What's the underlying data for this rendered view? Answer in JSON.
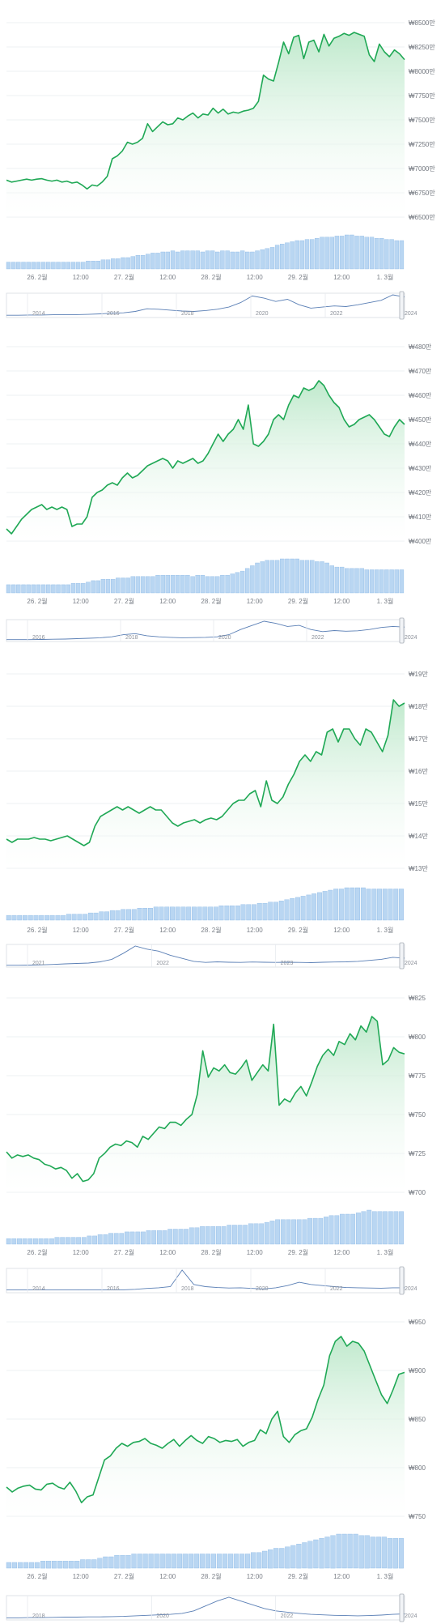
{
  "colors": {
    "line": "#1fa855",
    "area_top": "#bfe9cc",
    "volume": "#b9d6f2",
    "volume_stroke": "#8fbbe6",
    "navigator_line": "#5a7fb5",
    "grid": "#eef0f3",
    "axis_text": "#6f747c"
  },
  "chart_data": [
    {
      "type": "area",
      "x_tick_labels": [
        "26. 2월",
        "12:00",
        "27. 2월",
        "12:00",
        "28. 2월",
        "12:00",
        "29. 2월",
        "12:00",
        "1. 3월"
      ],
      "y_tick_labels": [
        "₩6500만",
        "₩6750만",
        "₩7000만",
        "₩7250만",
        "₩7500만",
        "₩7750만",
        "₩8000만",
        "₩8250만",
        "₩8500만"
      ],
      "ylim": [
        6500,
        8500
      ],
      "values": [
        6880,
        6860,
        6870,
        6880,
        6890,
        6880,
        6890,
        6895,
        6880,
        6870,
        6880,
        6860,
        6870,
        6850,
        6860,
        6830,
        6790,
        6830,
        6820,
        6860,
        6920,
        7100,
        7130,
        7180,
        7270,
        7250,
        7270,
        7310,
        7460,
        7380,
        7430,
        7480,
        7450,
        7460,
        7520,
        7500,
        7540,
        7570,
        7520,
        7560,
        7550,
        7620,
        7570,
        7610,
        7560,
        7580,
        7570,
        7590,
        7600,
        7620,
        7690,
        7960,
        7920,
        7900,
        8090,
        8300,
        8180,
        8350,
        8370,
        8130,
        8300,
        8320,
        8200,
        8380,
        8260,
        8340,
        8360,
        8390,
        8370,
        8400,
        8380,
        8360,
        8170,
        8100,
        8280,
        8200,
        8150,
        8220,
        8180,
        8120
      ],
      "volume": [
        6,
        6,
        6,
        6,
        6,
        6,
        6,
        6,
        6,
        6,
        6,
        6,
        6,
        6,
        6,
        6,
        7,
        7,
        7,
        8,
        8,
        9,
        9,
        10,
        10,
        11,
        12,
        12,
        13,
        14,
        14,
        15,
        15,
        16,
        15,
        16,
        16,
        16,
        16,
        15,
        16,
        16,
        15,
        16,
        16,
        15,
        15,
        16,
        15,
        15,
        16,
        17,
        18,
        19,
        21,
        22,
        23,
        24,
        25,
        25,
        26,
        26,
        27,
        28,
        28,
        28,
        29,
        29,
        30,
        30,
        29,
        29,
        28,
        28,
        27,
        27,
        26,
        26,
        25,
        25
      ],
      "navigator": {
        "year_labels": [
          "2014",
          "2016",
          "2018",
          "2020",
          "2022",
          "2024"
        ],
        "values": [
          0.3,
          0.3,
          0.4,
          0.4,
          0.5,
          0.6,
          0.6,
          0.7,
          0.9,
          1.2,
          1.4,
          2.0,
          3.2,
          3.0,
          2.6,
          2.2,
          2.0,
          2.4,
          3.0,
          4.0,
          6.0,
          9.0,
          8.0,
          6.5,
          7.5,
          5.0,
          3.5,
          4.0,
          4.5,
          4.2,
          5.0,
          6.0,
          7.0,
          9.5,
          8.5
        ]
      }
    },
    {
      "type": "area",
      "x_tick_labels": [
        "26. 2월",
        "12:00",
        "27. 2월",
        "12:00",
        "28. 2월",
        "12:00",
        "29. 2월",
        "12:00",
        "1. 3월"
      ],
      "y_tick_labels": [
        "₩400만",
        "₩410만",
        "₩420만",
        "₩430만",
        "₩440만",
        "₩450만",
        "₩460만",
        "₩470만",
        "₩480만"
      ],
      "ylim": [
        400,
        480
      ],
      "values": [
        405,
        403,
        406,
        409,
        411,
        413,
        414,
        415,
        413,
        414,
        413,
        414,
        413,
        406,
        407,
        407,
        410,
        418,
        420,
        421,
        423,
        424,
        423,
        426,
        428,
        426,
        427,
        429,
        431,
        432,
        433,
        434,
        433,
        430,
        433,
        432,
        433,
        434,
        432,
        433,
        436,
        440,
        444,
        441,
        444,
        446,
        450,
        446,
        456,
        440,
        439,
        441,
        444,
        450,
        452,
        450,
        456,
        460,
        459,
        463,
        462,
        463,
        466,
        464,
        460,
        457,
        455,
        450,
        447,
        448,
        450,
        451,
        452,
        450,
        447,
        444,
        443,
        447,
        450,
        448
      ],
      "volume": [
        6,
        6,
        6,
        6,
        6,
        6,
        6,
        6,
        6,
        6,
        6,
        6,
        6,
        7,
        7,
        7,
        8,
        9,
        9,
        10,
        10,
        10,
        11,
        11,
        11,
        12,
        12,
        12,
        12,
        12,
        13,
        13,
        13,
        13,
        13,
        13,
        13,
        12,
        13,
        13,
        12,
        12,
        12,
        13,
        13,
        14,
        15,
        16,
        18,
        20,
        22,
        23,
        24,
        24,
        24,
        25,
        25,
        25,
        25,
        24,
        24,
        24,
        23,
        23,
        22,
        20,
        19,
        19,
        18,
        18,
        18,
        18,
        17,
        17,
        17,
        17,
        17,
        17,
        17,
        17
      ],
      "navigator": {
        "year_labels": [
          "2016",
          "2018",
          "2020",
          "2022",
          "2024"
        ],
        "values": [
          0.1,
          0.1,
          0.1,
          0.2,
          0.3,
          0.4,
          0.6,
          0.8,
          1.0,
          1.5,
          2.5,
          3.0,
          2.0,
          1.5,
          1.2,
          1.0,
          1.1,
          1.2,
          1.5,
          2.5,
          5.0,
          7.0,
          9.0,
          8.0,
          6.5,
          7.0,
          5.0,
          4.0,
          4.5,
          4.2,
          4.4,
          5.0,
          6.0,
          6.5,
          6.2
        ]
      }
    },
    {
      "type": "area",
      "x_tick_labels": [
        "26. 2월",
        "12:00",
        "27. 2월",
        "12:00",
        "28. 2월",
        "12:00",
        "29. 2월",
        "12:00",
        "1. 3월"
      ],
      "y_tick_labels": [
        "₩13만",
        "₩14만",
        "₩15만",
        "₩16만",
        "₩17만",
        "₩18만",
        "₩19만"
      ],
      "ylim": [
        13,
        19
      ],
      "values": [
        13.9,
        13.8,
        13.9,
        13.9,
        13.9,
        13.95,
        13.9,
        13.9,
        13.85,
        13.9,
        13.95,
        14.0,
        13.9,
        13.8,
        13.7,
        13.8,
        14.3,
        14.6,
        14.7,
        14.8,
        14.9,
        14.8,
        14.9,
        14.8,
        14.7,
        14.8,
        14.9,
        14.8,
        14.8,
        14.6,
        14.4,
        14.3,
        14.4,
        14.45,
        14.5,
        14.4,
        14.5,
        14.55,
        14.5,
        14.6,
        14.8,
        15.0,
        15.1,
        15.1,
        15.3,
        15.4,
        14.9,
        15.7,
        15.1,
        15.0,
        15.2,
        15.6,
        15.9,
        16.3,
        16.5,
        16.3,
        16.6,
        16.5,
        17.2,
        17.3,
        16.9,
        17.3,
        17.3,
        17.0,
        16.8,
        17.3,
        17.2,
        16.9,
        16.6,
        17.1,
        18.2,
        18.0,
        18.1
      ],
      "volume": [
        4,
        4,
        4,
        4,
        4,
        4,
        4,
        4,
        4,
        4,
        4,
        5,
        5,
        5,
        5,
        6,
        6,
        7,
        7,
        8,
        8,
        9,
        9,
        9,
        10,
        10,
        10,
        11,
        11,
        11,
        11,
        11,
        11,
        11,
        11,
        11,
        11,
        11,
        11,
        12,
        12,
        12,
        12,
        13,
        13,
        13,
        14,
        14,
        15,
        15,
        16,
        17,
        18,
        19,
        20,
        21,
        22,
        23,
        24,
        25,
        26,
        26,
        27,
        27,
        27,
        27,
        26,
        26,
        26,
        26,
        26,
        26,
        26
      ],
      "navigator": {
        "year_labels": [
          "2021",
          "2022",
          "2023",
          "2024"
        ],
        "values": [
          0.1,
          0.1,
          0.2,
          0.3,
          0.5,
          0.8,
          1.0,
          1.2,
          1.8,
          3.0,
          6.0,
          9.5,
          8.0,
          7.0,
          5.0,
          3.5,
          2.0,
          1.5,
          1.8,
          1.6,
          1.5,
          1.7,
          1.6,
          1.5,
          1.6,
          1.5,
          1.4,
          1.6,
          1.7,
          1.8,
          2.0,
          2.5,
          3.0,
          4.0,
          3.6
        ]
      }
    },
    {
      "type": "area",
      "x_tick_labels": [
        "26. 2월",
        "12:00",
        "27. 2월",
        "12:00",
        "28. 2월",
        "12:00",
        "29. 2월",
        "12:00",
        "1. 3월"
      ],
      "y_tick_labels": [
        "₩700",
        "₩725",
        "₩750",
        "₩775",
        "₩800",
        "₩825"
      ],
      "ylim": [
        700,
        825
      ],
      "values": [
        726,
        722,
        724,
        723,
        724,
        722,
        721,
        718,
        717,
        715,
        716,
        714,
        709,
        712,
        707,
        708,
        712,
        722,
        725,
        729,
        731,
        730,
        733,
        732,
        729,
        736,
        734,
        738,
        742,
        741,
        745,
        745,
        743,
        747,
        750,
        763,
        791,
        774,
        780,
        778,
        782,
        777,
        776,
        780,
        785,
        772,
        777,
        782,
        778,
        808,
        756,
        760,
        758,
        764,
        768,
        762,
        771,
        781,
        788,
        792,
        788,
        797,
        795,
        802,
        798,
        807,
        803,
        813,
        810,
        782,
        785,
        793,
        790,
        789
      ],
      "volume": [
        4,
        4,
        4,
        4,
        4,
        4,
        4,
        4,
        4,
        5,
        5,
        5,
        5,
        5,
        5,
        6,
        6,
        7,
        7,
        8,
        8,
        8,
        9,
        9,
        9,
        9,
        10,
        10,
        10,
        10,
        11,
        11,
        11,
        11,
        12,
        12,
        13,
        13,
        13,
        13,
        13,
        14,
        14,
        14,
        14,
        15,
        15,
        15,
        16,
        17,
        18,
        18,
        18,
        18,
        18,
        18,
        19,
        19,
        19,
        20,
        21,
        21,
        22,
        22,
        22,
        23,
        24,
        25,
        24,
        24,
        24,
        24,
        24,
        24
      ],
      "navigator": {
        "year_labels": [
          "2014",
          "2016",
          "2018",
          "2020",
          "2022",
          "2024"
        ],
        "values": [
          0.5,
          0.5,
          0.5,
          0.5,
          0.5,
          0.5,
          0.5,
          0.6,
          0.6,
          0.6,
          0.6,
          0.8,
          1.2,
          1.5,
          2.0,
          9.5,
          3.0,
          2.0,
          1.6,
          1.4,
          1.5,
          1.2,
          1.0,
          1.5,
          2.5,
          4.0,
          3.0,
          2.5,
          2.0,
          1.6,
          1.5,
          1.4,
          1.3,
          1.5,
          1.5
        ]
      }
    },
    {
      "type": "area",
      "x_tick_labels": [
        "26. 2월",
        "12:00",
        "27. 2월",
        "12:00",
        "28. 2월",
        "12:00",
        "29. 2월",
        "12:00",
        "1. 3월"
      ],
      "y_tick_labels": [
        "₩750",
        "₩800",
        "₩850",
        "₩900",
        "₩950"
      ],
      "ylim": [
        750,
        950
      ],
      "values": [
        780,
        775,
        779,
        781,
        782,
        778,
        777,
        783,
        784,
        780,
        778,
        785,
        776,
        764,
        770,
        772,
        790,
        808,
        812,
        820,
        825,
        822,
        826,
        827,
        830,
        825,
        823,
        820,
        825,
        829,
        822,
        828,
        833,
        828,
        825,
        832,
        830,
        826,
        828,
        827,
        829,
        822,
        826,
        828,
        839,
        835,
        850,
        858,
        832,
        826,
        834,
        838,
        840,
        852,
        870,
        885,
        915,
        930,
        935,
        925,
        930,
        928,
        920,
        905,
        890,
        875,
        866,
        880,
        896,
        898
      ],
      "volume": [
        4,
        4,
        4,
        4,
        4,
        4,
        5,
        5,
        5,
        5,
        5,
        5,
        5,
        6,
        6,
        6,
        7,
        8,
        8,
        9,
        9,
        9,
        10,
        10,
        10,
        10,
        10,
        10,
        10,
        10,
        10,
        10,
        10,
        10,
        10,
        10,
        10,
        10,
        10,
        10,
        10,
        10,
        10,
        11,
        11,
        12,
        13,
        14,
        14,
        15,
        16,
        17,
        18,
        19,
        20,
        21,
        22,
        23,
        24,
        24,
        24,
        24,
        23,
        23,
        22,
        22,
        22,
        21,
        21,
        21
      ],
      "navigator": {
        "year_labels": [
          "2018",
          "2020",
          "2022",
          "2024"
        ],
        "values": [
          0.2,
          0.2,
          0.3,
          0.3,
          0.4,
          0.5,
          0.5,
          0.6,
          0.6,
          0.7,
          0.8,
          1.0,
          1.2,
          1.4,
          1.6,
          2.0,
          3.0,
          5.0,
          7.0,
          8.5,
          7.0,
          5.5,
          4.0,
          3.0,
          2.5,
          2.0,
          1.6,
          1.4,
          1.2,
          1.1,
          1.0,
          1.1,
          1.3,
          1.6,
          1.8
        ]
      }
    }
  ]
}
